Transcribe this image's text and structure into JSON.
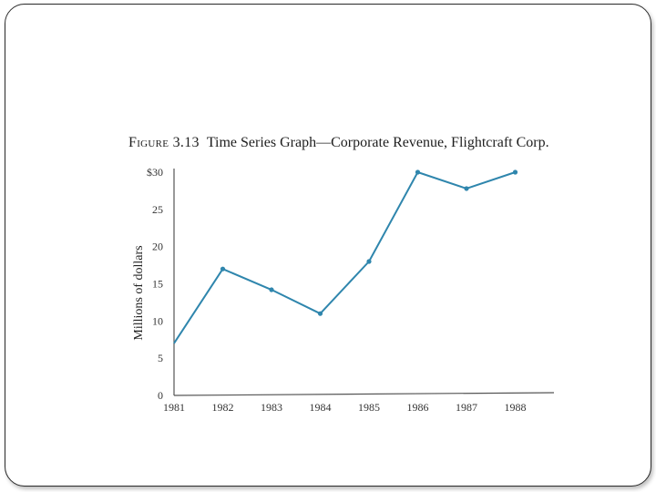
{
  "figure": {
    "label": "Figure 3.13",
    "caption": "Time Series Graph—Corporate Revenue, Flightcraft Corp."
  },
  "colors": {
    "line": "#2f86ad",
    "axis": "#555555",
    "text": "#333333"
  },
  "chart_data": {
    "type": "line",
    "title": "Time Series Graph—Corporate Revenue, Flightcraft Corp.",
    "xlabel": "",
    "ylabel": "Millions of dollars",
    "x": [
      "1981",
      "1982",
      "1983",
      "1984",
      "1985",
      "1986",
      "1987",
      "1988"
    ],
    "series": [
      {
        "values": [
          7,
          17,
          14.2,
          11,
          18,
          30,
          27.8,
          30
        ]
      }
    ],
    "ylim": [
      0,
      30
    ],
    "yticks": [
      0,
      5,
      10,
      15,
      20,
      25,
      30
    ],
    "ytick_labels": [
      "0",
      "5",
      "10",
      "15",
      "20",
      "25",
      "$30"
    ],
    "grid": false,
    "legend": "none"
  }
}
